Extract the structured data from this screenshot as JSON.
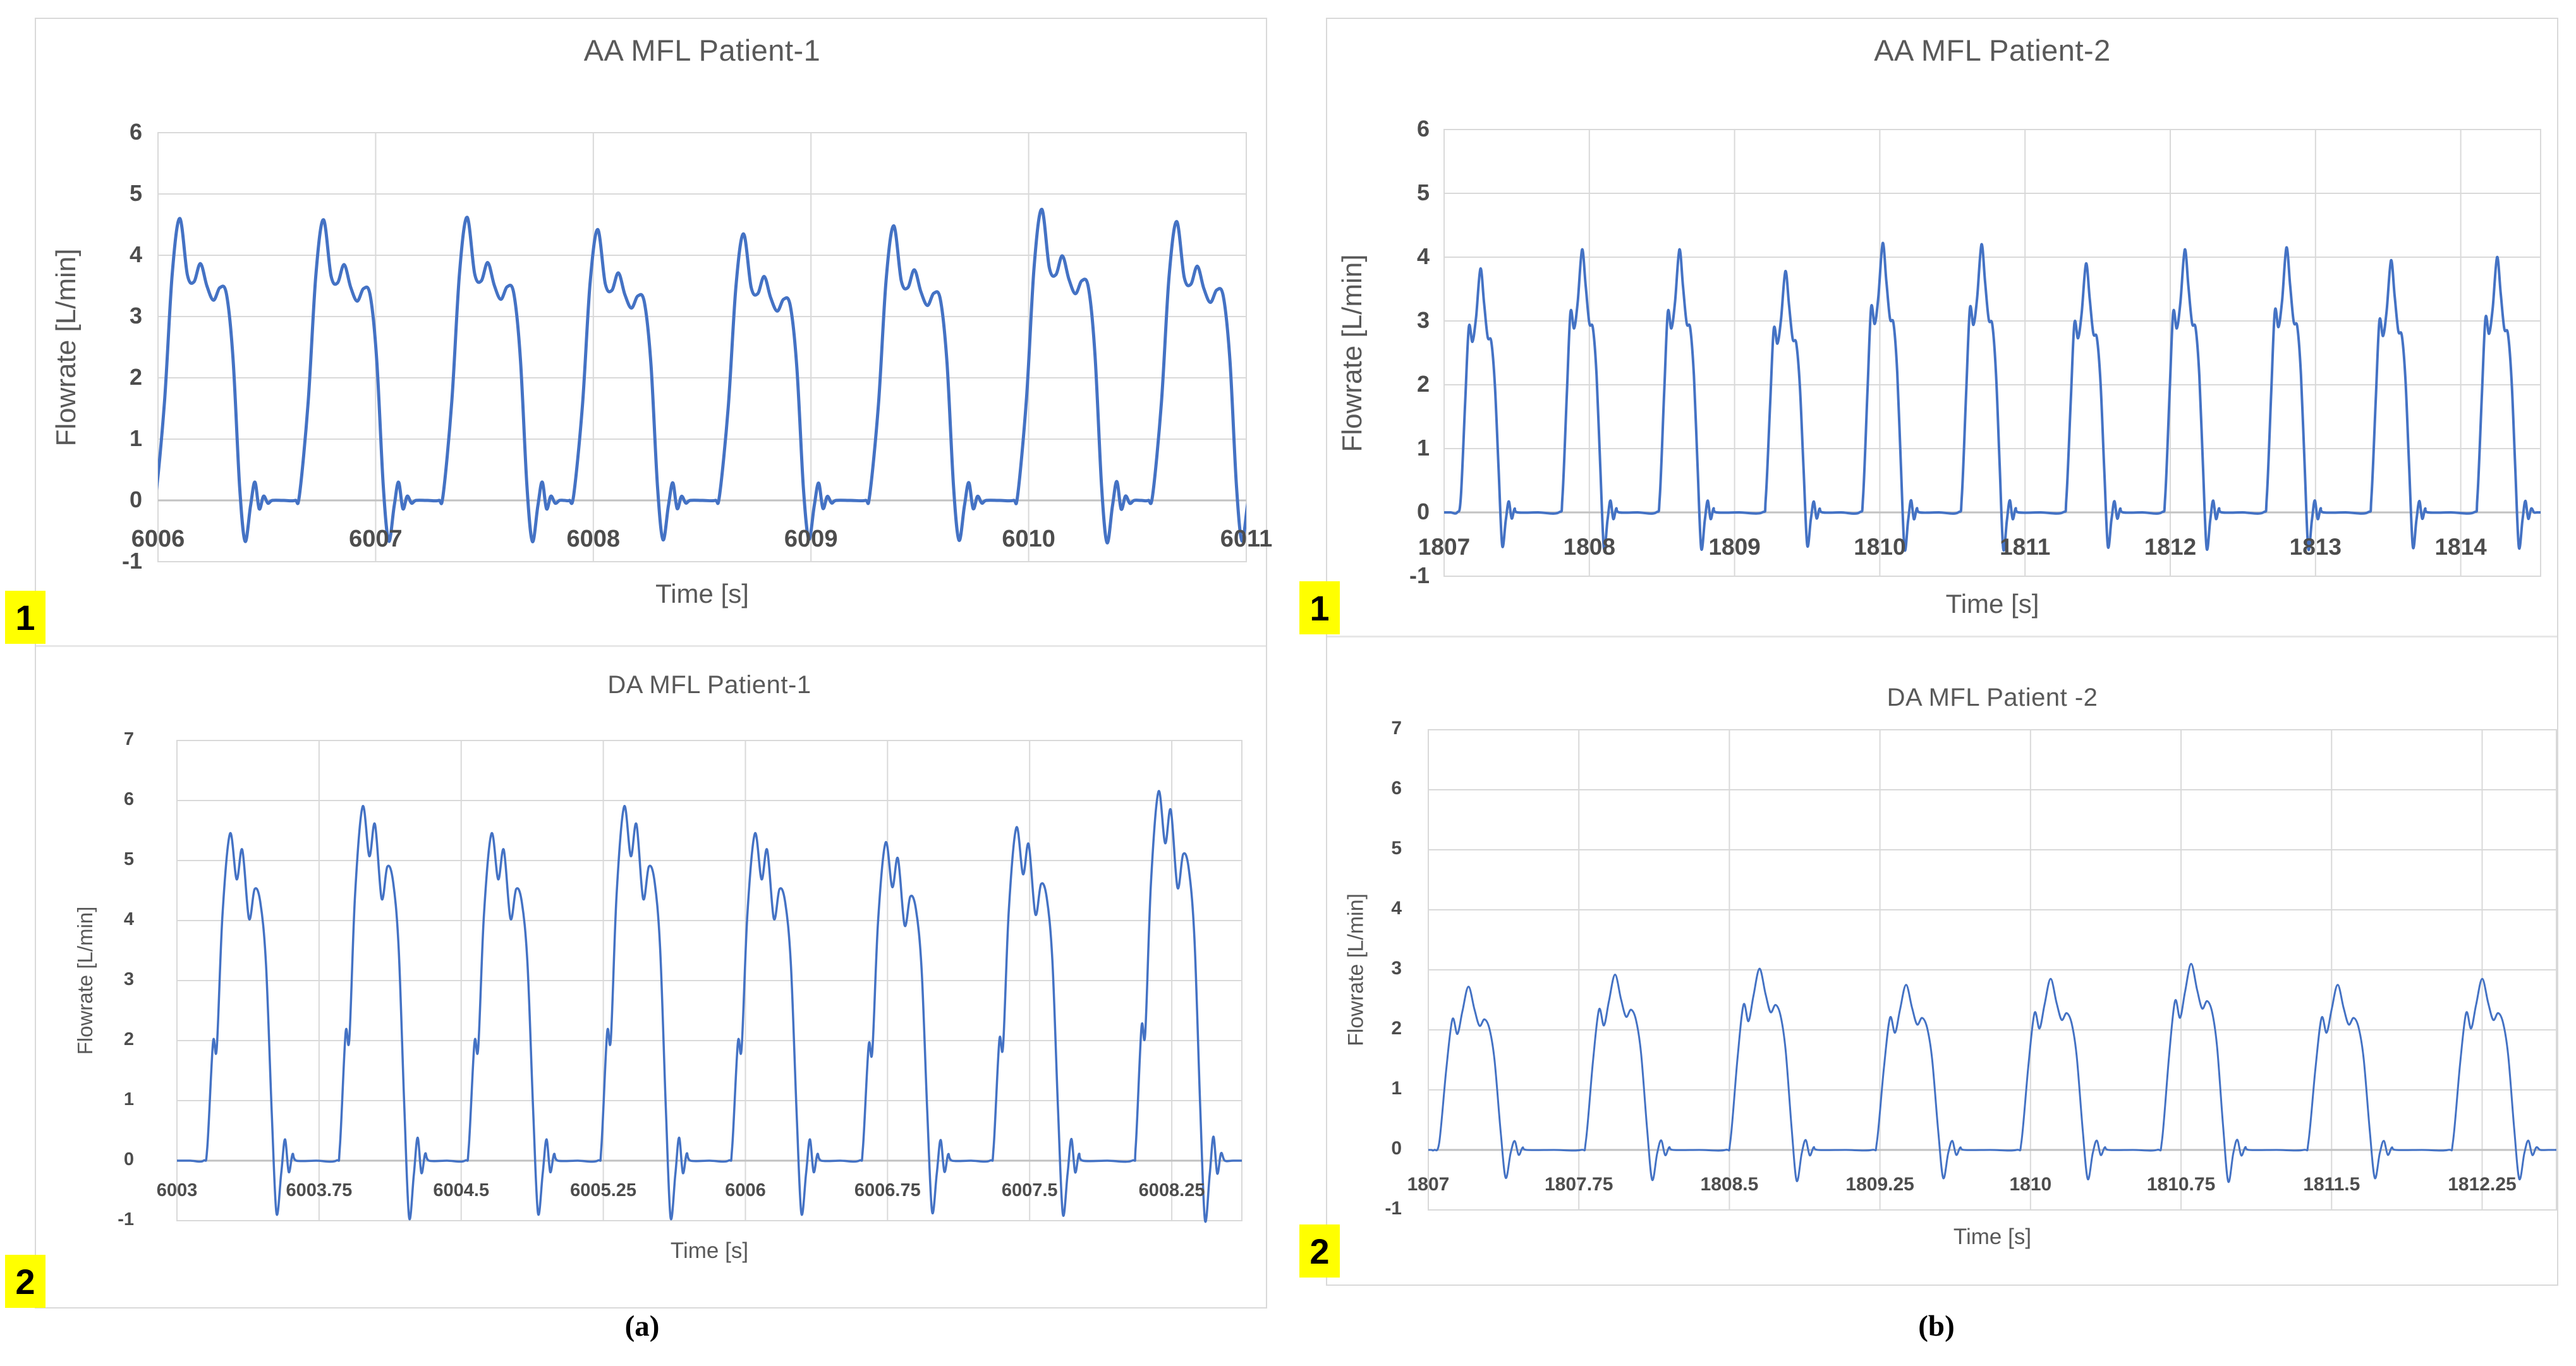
{
  "figure": {
    "captions": {
      "a": "(a)",
      "b": "(b)"
    },
    "colors": {
      "line": "#4472C4",
      "grid": "#D9D9D9",
      "zero_axis": "#C2C2C2",
      "plot_border": "#D9D9D9",
      "text": "#595959",
      "tick_text": "#4D4D4D",
      "marker_bg": "#FFFF00",
      "marker_text": "#000000",
      "panel_border": "#D9D9D9"
    }
  },
  "pulse_shapes": {
    "aa1": [
      [
        0,
        0
      ],
      [
        0.02,
        0.02
      ],
      [
        0.06,
        0.35
      ],
      [
        0.095,
        0.8
      ],
      [
        0.13,
        1
      ],
      [
        0.165,
        0.8
      ],
      [
        0.195,
        0.775
      ],
      [
        0.225,
        0.84
      ],
      [
        0.255,
        0.76
      ],
      [
        0.285,
        0.71
      ],
      [
        0.315,
        0.755
      ],
      [
        0.345,
        0.73
      ],
      [
        0.375,
        0.5
      ],
      [
        0.405,
        0.05
      ],
      [
        0.43,
        -0.145
      ],
      [
        0.455,
        -0.02
      ],
      [
        0.475,
        0.065
      ],
      [
        0.495,
        -0.03
      ],
      [
        0.515,
        0.015
      ],
      [
        0.535,
        -0.01
      ],
      [
        0.555,
        0
      ]
    ],
    "aa2": [
      [
        0,
        0
      ],
      [
        0.025,
        0.06
      ],
      [
        0.055,
        0.45
      ],
      [
        0.08,
        0.76
      ],
      [
        0.105,
        0.7
      ],
      [
        0.13,
        0.8
      ],
      [
        0.16,
        1
      ],
      [
        0.185,
        0.86
      ],
      [
        0.21,
        0.72
      ],
      [
        0.235,
        0.7
      ],
      [
        0.26,
        0.52
      ],
      [
        0.285,
        0.18
      ],
      [
        0.31,
        -0.135
      ],
      [
        0.335,
        -0.03
      ],
      [
        0.355,
        0.045
      ],
      [
        0.375,
        -0.025
      ],
      [
        0.395,
        0.015
      ],
      [
        0.415,
        0
      ]
    ],
    "da1": [
      [
        0,
        0
      ],
      [
        0.02,
        0.04
      ],
      [
        0.05,
        0.36
      ],
      [
        0.07,
        0.345
      ],
      [
        0.1,
        0.75
      ],
      [
        0.14,
        1
      ],
      [
        0.175,
        0.86
      ],
      [
        0.205,
        0.95
      ],
      [
        0.24,
        0.74
      ],
      [
        0.27,
        0.83
      ],
      [
        0.3,
        0.79
      ],
      [
        0.33,
        0.6
      ],
      [
        0.36,
        0.15
      ],
      [
        0.385,
        -0.16
      ],
      [
        0.41,
        -0.04
      ],
      [
        0.43,
        0.065
      ],
      [
        0.45,
        -0.035
      ],
      [
        0.47,
        0.02
      ],
      [
        0.49,
        0
      ]
    ],
    "da2": [
      [
        0,
        0
      ],
      [
        0.025,
        0.05
      ],
      [
        0.06,
        0.5
      ],
      [
        0.09,
        0.8
      ],
      [
        0.115,
        0.71
      ],
      [
        0.14,
        0.85
      ],
      [
        0.17,
        1
      ],
      [
        0.2,
        0.86
      ],
      [
        0.225,
        0.76
      ],
      [
        0.25,
        0.8
      ],
      [
        0.275,
        0.74
      ],
      [
        0.3,
        0.55
      ],
      [
        0.33,
        0.12
      ],
      [
        0.355,
        -0.17
      ],
      [
        0.38,
        -0.02
      ],
      [
        0.4,
        0.055
      ],
      [
        0.42,
        -0.03
      ],
      [
        0.44,
        0.015
      ],
      [
        0.46,
        0
      ]
    ]
  },
  "chart_data": [
    {
      "type": "line",
      "title": "AA MFL Patient-1",
      "xlabel": "Time  [s]",
      "ylabel": "Flowrate [L/min]",
      "marker": "1",
      "x_range": [
        6006,
        6011
      ],
      "y_range": [
        -1,
        6
      ],
      "x_ticks": [
        6006,
        6007,
        6008,
        6009,
        6010,
        6011
      ],
      "y_ticks": [
        6,
        5,
        4,
        3,
        2,
        1,
        0,
        -1
      ],
      "grid": true,
      "legend": "none",
      "pulse_shape": "aa1",
      "pulses": [
        {
          "t": 6005.97,
          "peak": 4.6
        },
        {
          "t": 6006.63,
          "peak": 4.58
        },
        {
          "t": 6007.29,
          "peak": 4.62
        },
        {
          "t": 6007.89,
          "peak": 4.42
        },
        {
          "t": 6008.56,
          "peak": 4.35
        },
        {
          "t": 6009.25,
          "peak": 4.48
        },
        {
          "t": 6009.93,
          "peak": 4.75
        },
        {
          "t": 6010.55,
          "peak": 4.55
        }
      ]
    },
    {
      "type": "line",
      "title": "AA MFL Patient-2",
      "xlabel": "Time  [s]",
      "ylabel": "Flowrate [L/min]",
      "marker": "1",
      "x_range": [
        1807,
        1814.55
      ],
      "y_range": [
        -1,
        6
      ],
      "x_ticks": [
        1807,
        1808,
        1809,
        1810,
        1811,
        1812,
        1813,
        1814
      ],
      "y_ticks": [
        6,
        5,
        4,
        3,
        2,
        1,
        0,
        -1
      ],
      "grid": true,
      "legend": "none",
      "pulse_shape": "aa2",
      "pulses": [
        {
          "t": 1807.09,
          "peak": 3.82
        },
        {
          "t": 1807.79,
          "peak": 4.12
        },
        {
          "t": 1808.46,
          "peak": 4.12
        },
        {
          "t": 1809.19,
          "peak": 3.78
        },
        {
          "t": 1809.86,
          "peak": 4.22
        },
        {
          "t": 1810.54,
          "peak": 4.2
        },
        {
          "t": 1811.26,
          "peak": 3.9
        },
        {
          "t": 1811.94,
          "peak": 4.12
        },
        {
          "t": 1812.64,
          "peak": 4.15
        },
        {
          "t": 1813.36,
          "peak": 3.95
        },
        {
          "t": 1814.09,
          "peak": 4.0
        }
      ]
    },
    {
      "type": "line",
      "title": "DA MFL Patient-1",
      "xlabel": "Time [s]",
      "ylabel": "Flowrate [L/min]",
      "marker": "2",
      "x_range": [
        6003,
        6008.62
      ],
      "y_range": [
        -1,
        7
      ],
      "x_ticks": [
        6003,
        6003.75,
        6004.5,
        6005.25,
        6006,
        6006.75,
        6007.5,
        6008.25
      ],
      "y_ticks": [
        7,
        6,
        5,
        4,
        3,
        2,
        1,
        0,
        -1
      ],
      "grid": true,
      "legend": "none",
      "pulse_shape": "da1",
      "pulses": [
        {
          "t": 6003.14,
          "peak": 5.45
        },
        {
          "t": 6003.84,
          "peak": 5.9
        },
        {
          "t": 6004.52,
          "peak": 5.45
        },
        {
          "t": 6005.22,
          "peak": 5.9
        },
        {
          "t": 6005.91,
          "peak": 5.45
        },
        {
          "t": 6006.6,
          "peak": 5.3
        },
        {
          "t": 6007.29,
          "peak": 5.55
        },
        {
          "t": 6008.04,
          "peak": 6.15
        }
      ]
    },
    {
      "type": "line",
      "title": "DA MFL Patient -2",
      "xlabel": "Time [s]",
      "ylabel": "Flowrate [L/min]",
      "marker": "2",
      "x_range": [
        1807,
        1812.62
      ],
      "y_range": [
        -1,
        7
      ],
      "x_ticks": [
        1807,
        1807.75,
        1808.5,
        1809.25,
        1810,
        1810.75,
        1811.5,
        1812.25
      ],
      "y_ticks": [
        7,
        6,
        5,
        4,
        3,
        2,
        1,
        0,
        -1
      ],
      "grid": true,
      "legend": "none",
      "pulse_shape": "da2",
      "pulses": [
        {
          "t": 1807.03,
          "peak": 2.72
        },
        {
          "t": 1807.76,
          "peak": 2.92
        },
        {
          "t": 1808.48,
          "peak": 3.02
        },
        {
          "t": 1809.21,
          "peak": 2.75
        },
        {
          "t": 1809.93,
          "peak": 2.85
        },
        {
          "t": 1810.63,
          "peak": 3.1
        },
        {
          "t": 1811.36,
          "peak": 2.75
        },
        {
          "t": 1812.08,
          "peak": 2.85
        }
      ]
    }
  ]
}
